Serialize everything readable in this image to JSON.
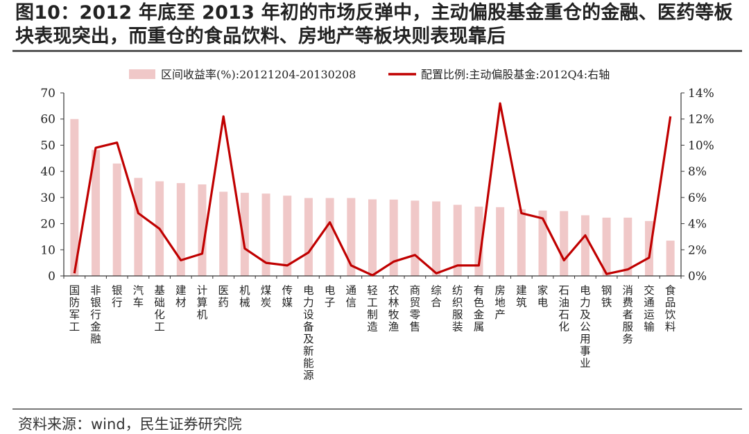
{
  "title": "图10：2012 年底至 2013 年初的市场反弹中，主动偏股基金重仓的金融、医药等板块表现突出，而重仓的食品饮料、房地产等板块则表现靠后",
  "source": "资料来源：wind，民生证券研究院",
  "chart_data": {
    "type": "bar+line",
    "categories": [
      "国防军工",
      "非银行金融",
      "银行",
      "汽车",
      "基础化工",
      "建材",
      "计算机",
      "医药",
      "机械",
      "煤炭",
      "传媒",
      "电力设备及新能源",
      "电子",
      "通信",
      "轻工制造",
      "农林牧渔",
      "商贸零售",
      "综合",
      "纺织服装",
      "有色金属",
      "房地产",
      "建筑",
      "家电",
      "石油石化",
      "电力及公用事业",
      "钢铁",
      "消费者服务",
      "交通运输",
      "食品饮料"
    ],
    "series": [
      {
        "name": "区间收益率(%):20121204-20130208",
        "type": "bar",
        "axis": "left",
        "color": "#f0c8c8",
        "values": [
          60,
          48.2,
          43,
          37.5,
          36.2,
          35.5,
          35,
          32.2,
          31.8,
          31.5,
          30.7,
          29.8,
          29.8,
          29.8,
          29.3,
          29.2,
          28.8,
          28.5,
          27.2,
          26.5,
          26.3,
          25.5,
          25,
          24.8,
          23.2,
          22.3,
          22.3,
          21,
          13.5
        ]
      },
      {
        "name": "配置比例:主动偏股基金:2012Q4:右轴",
        "type": "line",
        "axis": "right",
        "color": "#c00000",
        "values": [
          0.2,
          9.8,
          10.2,
          4.8,
          3.6,
          1.2,
          1.7,
          12.2,
          2.1,
          1.0,
          0.8,
          1.8,
          4.1,
          0.8,
          0.05,
          1.1,
          1.6,
          0.2,
          0.8,
          0.8,
          13.2,
          4.8,
          4.4,
          1.2,
          3.1,
          0.15,
          0.5,
          1.4,
          12.2
        ]
      }
    ],
    "y_left": {
      "ylim": [
        0,
        70
      ],
      "ticks": [
        "0",
        "10",
        "20",
        "30",
        "40",
        "50",
        "60",
        "70"
      ],
      "tick_values": [
        0,
        10,
        20,
        30,
        40,
        50,
        60,
        70
      ]
    },
    "y_right": {
      "ylim": [
        0,
        14
      ],
      "ticks": [
        "0%",
        "2%",
        "4%",
        "6%",
        "8%",
        "10%",
        "12%",
        "14%"
      ],
      "tick_values": [
        0,
        2,
        4,
        6,
        8,
        10,
        12,
        14
      ]
    },
    "legend_position": "top",
    "grid": false
  }
}
